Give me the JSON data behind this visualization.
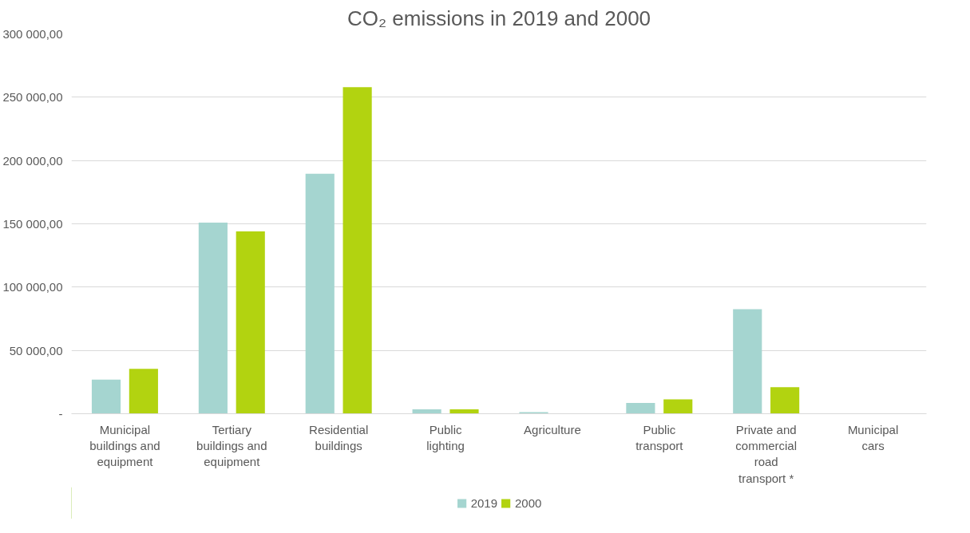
{
  "chart_data": {
    "type": "bar",
    "title": "CO₂ emissions in 2019 and 2000",
    "categories": [
      "Municipal buildings and equipment",
      "Tertiary buildings and equipment",
      "Residential buildings",
      "Public lighting",
      "Agriculture",
      "Public transport",
      "Private and commercial road transport *",
      "Municipal cars"
    ],
    "series": [
      {
        "name": "2019",
        "color": "#a5d5d0",
        "values": [
          27000,
          151000,
          189500,
          3400,
          1200,
          8500,
          82500,
          0
        ]
      },
      {
        "name": "2000",
        "color": "#b2d310",
        "values": [
          35500,
          144000,
          258000,
          3400,
          0,
          11300,
          21000,
          0
        ]
      }
    ],
    "ylim": [
      0,
      300000
    ],
    "yticks": [
      {
        "value": 0,
        "label": "-"
      },
      {
        "value": 50000,
        "label": "50 000,00"
      },
      {
        "value": 100000,
        "label": "100 000,00"
      },
      {
        "value": 150000,
        "label": "150 000,00"
      },
      {
        "value": 200000,
        "label": "200 000,00"
      },
      {
        "value": 250000,
        "label": "250 000,00"
      },
      {
        "value": 300000,
        "label": "300 000,00"
      }
    ],
    "grid": "y",
    "legend": "bottom"
  }
}
